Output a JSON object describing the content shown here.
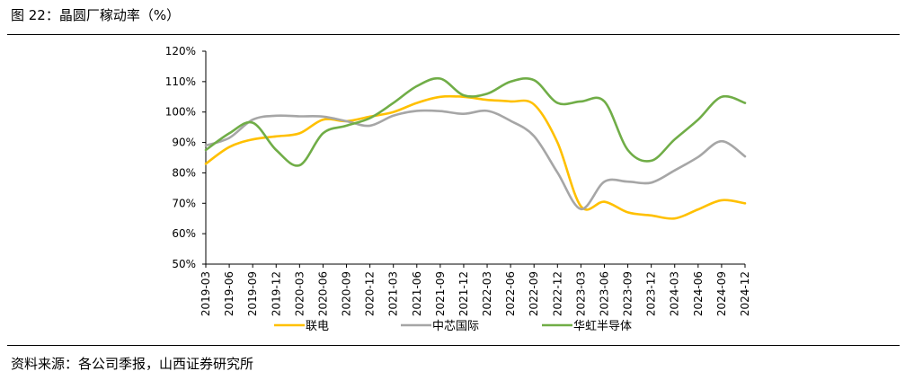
{
  "figure": {
    "title": "图 22：晶圆厂稼动率（%）",
    "source": "资料来源：各公司季报，山西证券研究所"
  },
  "chart_data": {
    "type": "line",
    "x": [
      "2019-03",
      "2019-06",
      "2019-09",
      "2019-12",
      "2020-03",
      "2020-06",
      "2020-09",
      "2020-12",
      "2021-03",
      "2021-06",
      "2021-09",
      "2021-12",
      "2022-03",
      "2022-06",
      "2022-09",
      "2022-12",
      "2023-03",
      "2023-06",
      "2023-09",
      "2023-12",
      "2024-03",
      "2024-06",
      "2024-09",
      "2024-12"
    ],
    "y_ticks": [
      "50%",
      "60%",
      "70%",
      "80%",
      "90%",
      "100%",
      "110%",
      "120%"
    ],
    "ylim": [
      50,
      120
    ],
    "grid": false,
    "legend_position": "bottom",
    "series": [
      {
        "name": "联电",
        "color": "#FFC000",
        "values": [
          83,
          88.5,
          91,
          92,
          93,
          97.5,
          97,
          98.5,
          100,
          103,
          105,
          105,
          104,
          103.5,
          102.5,
          90,
          69,
          70.5,
          67,
          66,
          65,
          68,
          71,
          70
        ]
      },
      {
        "name": "中芯国际",
        "color": "#A6A6A6",
        "values": [
          89,
          91.5,
          97.5,
          98.8,
          98.6,
          98.5,
          97,
          95.5,
          98.8,
          100.4,
          100.3,
          99.4,
          100.4,
          97.1,
          92.1,
          80.1,
          68.1,
          77.1,
          77.1,
          76.8,
          80.8,
          85.2,
          90.4,
          85.4
        ]
      },
      {
        "name": "华虹半导体",
        "color": "#70AD47",
        "values": [
          87.5,
          93,
          96.5,
          87.5,
          82.5,
          93,
          95.5,
          98,
          103,
          108.5,
          111,
          105.5,
          106,
          110,
          110.5,
          103,
          103.5,
          103.5,
          87.5,
          84,
          91,
          97.5,
          105,
          103
        ]
      }
    ]
  }
}
